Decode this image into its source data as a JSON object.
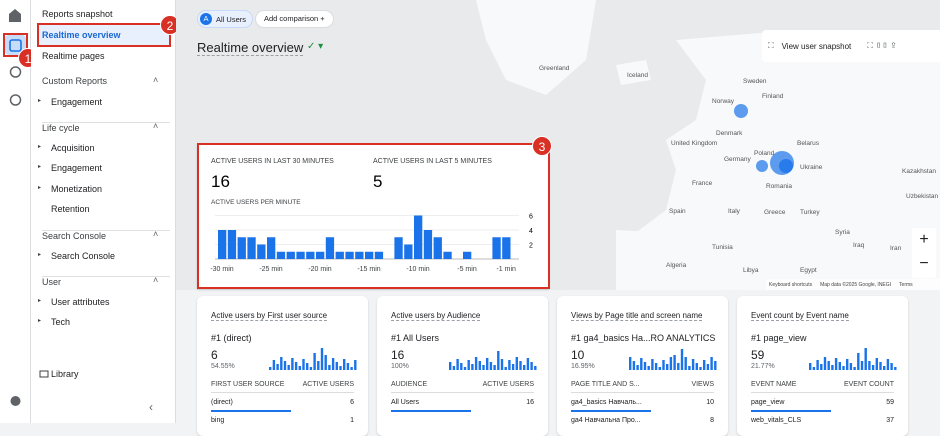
{
  "nav": {
    "items": [
      "Reports snapshot",
      "Realtime overview",
      "Realtime pages"
    ],
    "sections": [
      {
        "title": "Custom Reports",
        "items": [
          "Engagement"
        ]
      },
      {
        "title": "Life cycle",
        "items": [
          "Acquisition",
          "Engagement",
          "Monetization",
          "Retention"
        ]
      },
      {
        "title": "Search Console",
        "items": [
          "Search Console"
        ]
      },
      {
        "title": "User",
        "items": [
          "User attributes",
          "Tech"
        ]
      }
    ],
    "library": "Library"
  },
  "header": {
    "segment_badge": "A",
    "segment": "All Users",
    "add_comparison": "Add comparison",
    "title": "Realtime overview",
    "snapshot": "View user snapshot"
  },
  "map": {
    "labels": [
      "Greenland",
      "Iceland",
      "Sweden",
      "Finland",
      "Norway",
      "Denmark",
      "United Kingdom",
      "Belarus",
      "Germany",
      "Ukraine",
      "Poland",
      "France",
      "Romania",
      "Kazakhstan",
      "Italy",
      "Spain",
      "Greece",
      "Turkey",
      "Uzbekistan",
      "Tunisia",
      "Syria",
      "Iraq",
      "Iran",
      "Algeria",
      "Libya",
      "Egypt"
    ],
    "attribution": [
      "Keyboard shortcuts",
      "Map data ©2025 Google, INEGI",
      "Terms"
    ]
  },
  "realtime": {
    "kpis": [
      {
        "label": "ACTIVE USERS IN LAST 30 MINUTES",
        "value": 16
      },
      {
        "label": "ACTIVE USERS IN LAST 5 MINUTES",
        "value": 5
      }
    ],
    "chart": {
      "title": "ACTIVE USERS PER MINUTE",
      "values": [
        4,
        4,
        3,
        3,
        2,
        3,
        1,
        1,
        1,
        1,
        1,
        3,
        1,
        1,
        1,
        1,
        1,
        0,
        3,
        2,
        6,
        4,
        3,
        1,
        0,
        1,
        0,
        0,
        3,
        3
      ],
      "color": "#1a73e8",
      "ylim": [
        0,
        8
      ],
      "yticks": [
        2,
        4,
        6
      ],
      "x_labels": [
        "-30 min",
        "-25 min",
        "-20 min",
        "-15 min",
        "-10 min",
        "-5 min",
        "-1 min"
      ]
    }
  },
  "cards": [
    {
      "title": "Active users by First user source",
      "top": "#1 (direct)",
      "value": 6,
      "percent": "54.55%",
      "columns": [
        "FIRST USER SOURCE",
        "ACTIVE USERS"
      ],
      "rows": [
        [
          "(direct)",
          6
        ],
        [
          "bing",
          1
        ]
      ]
    },
    {
      "title": "Active users by Audience",
      "top": "#1 All Users",
      "value": 16,
      "percent": "100%",
      "columns": [
        "AUDIENCE",
        "ACTIVE USERS"
      ],
      "rows": [
        [
          "All Users",
          16
        ]
      ]
    },
    {
      "title": "Views by Page title and screen name",
      "top": "#1 ga4_basics Ha...RO ANALYTICS",
      "value": 10,
      "percent": "16.95%",
      "columns": [
        "PAGE TITLE AND S...",
        "VIEWS"
      ],
      "rows": [
        [
          "ga4_basics Навчаль...",
          10
        ],
        [
          "ga4 Навчальна Про...",
          8
        ]
      ]
    },
    {
      "title": "Event count by Event name",
      "top": "#1 page_view",
      "value": 59,
      "percent": "21.77%",
      "columns": [
        "EVENT NAME",
        "EVENT COUNT"
      ],
      "rows": [
        [
          "page_view",
          59
        ],
        [
          "web_vitals_CLS",
          37
        ]
      ]
    }
  ],
  "annotations": [
    "1",
    "2",
    "3"
  ]
}
